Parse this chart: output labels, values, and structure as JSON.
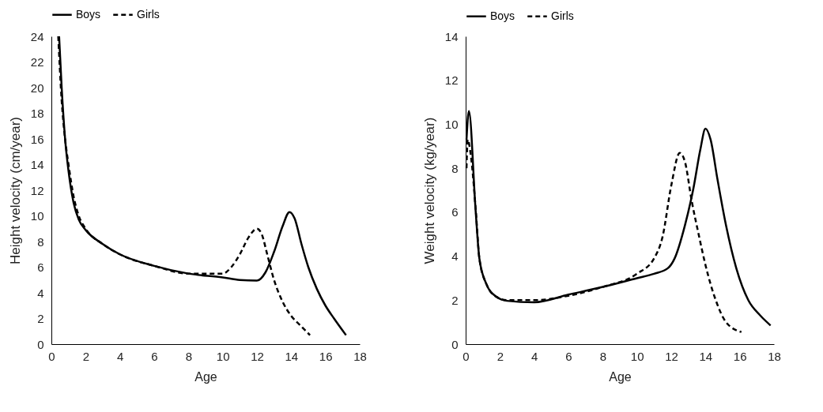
{
  "chart_data": [
    {
      "type": "line",
      "xlabel": "Age",
      "ylabel": "Height velocity (cm/year)",
      "xlim": [
        0,
        18
      ],
      "xticks": [
        0,
        2,
        4,
        6,
        8,
        10,
        12,
        14,
        16,
        18
      ],
      "ylim": [
        0,
        24
      ],
      "yticks": [
        0,
        2,
        4,
        6,
        8,
        10,
        12,
        14,
        16,
        18,
        20,
        22,
        24
      ],
      "grid": false,
      "legend": "top",
      "series": [
        {
          "name": "Boys",
          "color": "#000000",
          "line_style": "solid",
          "x": [
            0.45,
            0.6,
            0.8,
            1.0,
            1.3,
            1.6,
            2,
            3,
            4,
            6,
            8,
            10,
            11,
            12,
            12.5,
            13,
            13.5,
            13.9,
            14.2,
            14.6,
            15,
            15.5,
            16,
            16.5,
            17.2
          ],
          "values": [
            24,
            20,
            16,
            13.5,
            11,
            9.7,
            8.9,
            7.8,
            7,
            6.1,
            5.5,
            5.2,
            5,
            4.95,
            5.6,
            7.2,
            9.2,
            10.3,
            9.8,
            7.8,
            6,
            4.3,
            3,
            2,
            0.7
          ]
        },
        {
          "name": "Girls",
          "color": "#000000",
          "line_style": "dashed",
          "x": [
            0.4,
            0.6,
            0.8,
            1.0,
            1.3,
            1.6,
            2,
            3,
            4,
            6,
            8,
            9,
            10,
            10.5,
            11,
            11.5,
            12,
            12.3,
            12.6,
            13,
            13.5,
            14,
            14.5,
            15.1
          ],
          "values": [
            24,
            19,
            16,
            14,
            11.5,
            10,
            9,
            7.8,
            7,
            6.1,
            5.5,
            5.5,
            5.5,
            6,
            7,
            8.3,
            9,
            8.5,
            7,
            5,
            3.3,
            2.2,
            1.5,
            0.7
          ]
        }
      ]
    },
    {
      "type": "line",
      "xlabel": "Age",
      "ylabel": "Weight velocity (kg/year)",
      "xlim": [
        0,
        18
      ],
      "xticks": [
        0,
        2,
        4,
        6,
        8,
        10,
        12,
        14,
        16,
        18
      ],
      "ylim": [
        0,
        14
      ],
      "yticks": [
        0,
        2,
        4,
        6,
        8,
        10,
        12,
        14
      ],
      "grid": false,
      "legend": "top",
      "series": [
        {
          "name": "Boys",
          "color": "#000000",
          "line_style": "solid",
          "x": [
            0.05,
            0.19,
            0.58,
            0.8,
            1.2,
            1.8,
            2.4,
            4,
            6,
            8,
            10,
            11,
            11.8,
            12.2,
            12.8,
            13.3,
            13.7,
            14,
            14.3,
            14.7,
            15.2,
            15.8,
            16.5,
            17.2,
            17.8
          ],
          "values": [
            9.3,
            10.6,
            6.1,
            3.9,
            2.75,
            2.15,
            1.97,
            1.9,
            2.25,
            2.6,
            3,
            3.2,
            3.45,
            3.9,
            5.4,
            7.1,
            8.85,
            9.8,
            9.3,
            7.5,
            5.4,
            3.45,
            2,
            1.3,
            0.85
          ]
        },
        {
          "name": "Girls",
          "color": "#000000",
          "line_style": "dashed",
          "x": [
            0.05,
            0.12,
            0.3,
            0.6,
            0.8,
            1.2,
            1.8,
            2.4,
            4,
            6,
            8,
            10,
            11,
            11.5,
            12,
            12.5,
            12.8,
            13.2,
            13.6,
            14,
            14.6,
            15.2,
            16.1
          ],
          "values": [
            8,
            9.3,
            8.6,
            6,
            3.9,
            2.75,
            2.15,
            2,
            2,
            2.2,
            2.6,
            3.2,
            3.9,
            4.9,
            7.2,
            8.7,
            8.3,
            6.5,
            5,
            3.6,
            2,
            1,
            0.55
          ]
        }
      ]
    }
  ]
}
